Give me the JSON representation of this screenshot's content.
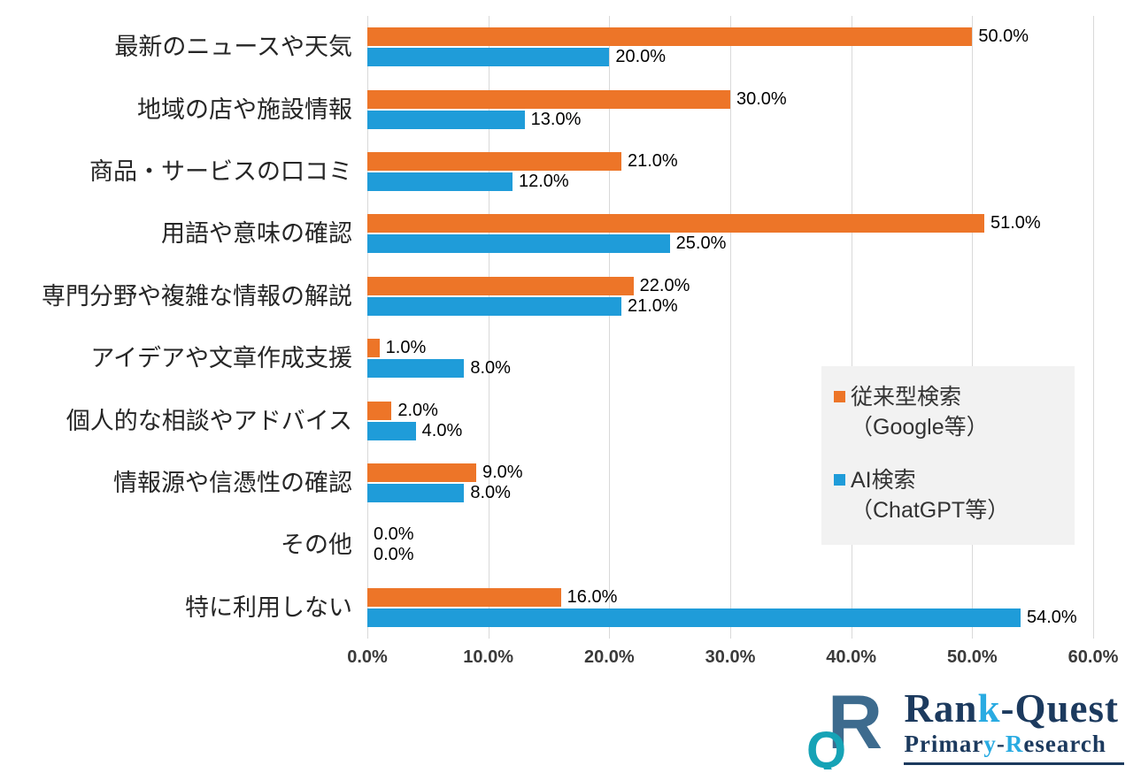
{
  "chart_data": {
    "type": "bar",
    "orientation": "horizontal",
    "title": "",
    "categories": [
      "最新のニュースや天気",
      "地域の店や施設情報",
      "商品・サービスの口コミ",
      "用語や意味の確認",
      "専門分野や複雑な情報の解説",
      "アイデアや文章作成支援",
      "個人的な相談やアドバイス",
      "情報源や信憑性の確認",
      "その他",
      "特に利用しない"
    ],
    "series": [
      {
        "name": "従来型検索（Google等）",
        "color": "#ED7528",
        "values": [
          50,
          30,
          21,
          51,
          22,
          1,
          2,
          9,
          0,
          16
        ]
      },
      {
        "name": "AI検索（ChatGPT等）",
        "color": "#1F9CD9",
        "values": [
          20,
          13,
          12,
          25,
          21,
          8,
          4,
          8,
          0,
          54
        ]
      }
    ],
    "x_ticks": [
      "0.0%",
      "10.0%",
      "20.0%",
      "30.0%",
      "40.0%",
      "50.0%",
      "60.0%"
    ],
    "xlim": [
      0,
      60
    ],
    "grid": "vertical",
    "legend_position": "right-overlay"
  },
  "legend": {
    "items": [
      {
        "line1": "従来型検索",
        "line2": "（Google等）",
        "color": "#ED7528"
      },
      {
        "line1": "AI検索",
        "line2": "（ChatGPT等）",
        "color": "#1F9CD9"
      }
    ]
  },
  "logo": {
    "title_prefix": "Ran",
    "title_accent": "k",
    "title_suffix": "-Quest",
    "subtitle_p1": "Primar",
    "subtitle_a1": "y",
    "subtitle_p2": "-",
    "subtitle_a2": "R",
    "subtitle_p3": "esearch"
  }
}
